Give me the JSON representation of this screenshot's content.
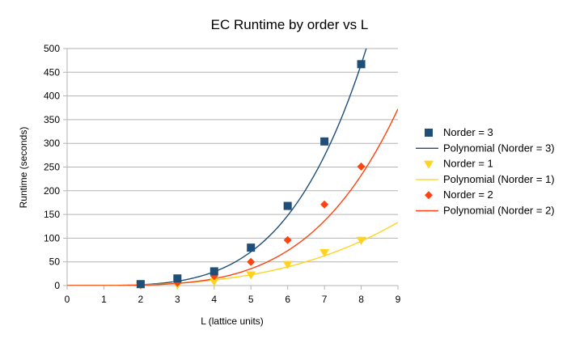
{
  "chart_data": {
    "type": "scatter",
    "title": "EC Runtime by order vs L",
    "xlabel": "L (lattice units)",
    "ylabel": "Runtime (seconds)",
    "xlim": [
      0,
      9
    ],
    "ylim": [
      0,
      500
    ],
    "xticks": [
      0,
      1,
      2,
      3,
      4,
      5,
      6,
      7,
      8,
      9
    ],
    "yticks": [
      0,
      50,
      100,
      150,
      200,
      250,
      300,
      350,
      400,
      450,
      500
    ],
    "grid": "horizontal",
    "legend_position": "right",
    "series": [
      {
        "name": "Norder  = 3",
        "marker": "square",
        "color": "#1f4e79",
        "x": [
          2,
          3,
          4,
          5,
          6,
          7,
          8
        ],
        "y": [
          3,
          15,
          30,
          80,
          168,
          304,
          467
        ]
      },
      {
        "name": "Norder  = 1",
        "marker": "triangle-down",
        "color": "#ffd320",
        "x": [
          2,
          3,
          4,
          5,
          6,
          7,
          8
        ],
        "y": [
          1,
          2,
          9,
          23,
          45,
          70,
          96
        ]
      },
      {
        "name": "Norder  = 2",
        "marker": "diamond",
        "color": "#ff420e",
        "x": [
          2,
          3,
          4,
          5,
          6,
          7,
          8
        ],
        "y": [
          2,
          6,
          20,
          50,
          96,
          171,
          251
        ]
      }
    ],
    "trendlines": [
      {
        "name": "Polynomial (Norder  = 3)",
        "color": "#1f4e79",
        "coefficients": [
          0.0,
          0.0,
          0.0,
          0.0,
          0.114
        ]
      },
      {
        "name": "Polynomial (Norder  = 1)",
        "color": "#ffd320",
        "coefficients": [
          0.0,
          0.0,
          0.0,
          0.183
        ]
      },
      {
        "name": "Polynomial (Norder  = 2)",
        "color": "#ff420e",
        "coefficients": [
          0.0,
          0.0,
          0.0,
          0.0,
          0.0568
        ]
      }
    ],
    "legend_order": [
      {
        "kind": "marker",
        "ref": 0
      },
      {
        "kind": "line",
        "ref": 0
      },
      {
        "kind": "marker",
        "ref": 1
      },
      {
        "kind": "line",
        "ref": 1
      },
      {
        "kind": "marker",
        "ref": 2
      },
      {
        "kind": "line",
        "ref": 2
      }
    ]
  }
}
